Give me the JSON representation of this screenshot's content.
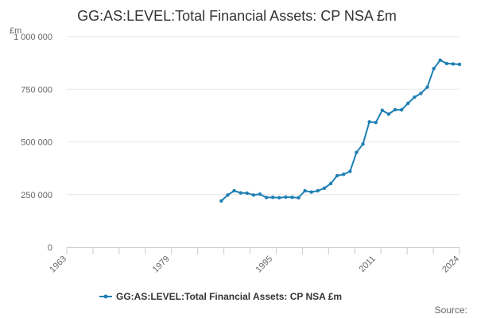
{
  "chart_data": {
    "type": "line",
    "title": "GG:AS:LEVEL:Total Financial Assets: CP NSA £m",
    "unit_label": "£m",
    "source_label": "Source:",
    "x_ticks": [
      "1963",
      "1979",
      "1995",
      "2011",
      "2024"
    ],
    "y_ticks": [
      "0",
      "250 000",
      "500 000",
      "750 000",
      "1 000 000"
    ],
    "xlim": [
      1963,
      2024
    ],
    "ylim": [
      0,
      1000000
    ],
    "grid": "horizontal",
    "legend_position": "bottom",
    "series": [
      {
        "name": "GG:AS:LEVEL:Total Financial Assets: CP NSA £m",
        "color": "#1f7fb4",
        "x": [
          1987,
          1988,
          1989,
          1990,
          1991,
          1992,
          1993,
          1994,
          1995,
          1996,
          1997,
          1998,
          1999,
          2000,
          2001,
          2002,
          2003,
          2004,
          2005,
          2006,
          2007,
          2008,
          2009,
          2010,
          2011,
          2012,
          2013,
          2014,
          2015,
          2016,
          2017,
          2018,
          2019,
          2020,
          2021,
          2022,
          2023,
          2024
        ],
        "y": [
          220000,
          248000,
          268000,
          258000,
          257000,
          248000,
          252000,
          236000,
          237000,
          235000,
          238000,
          237000,
          235000,
          268000,
          262000,
          268000,
          280000,
          302000,
          340000,
          346000,
          360000,
          450000,
          490000,
          595000,
          592000,
          650000,
          632000,
          653000,
          652000,
          683000,
          712000,
          730000,
          760000,
          848000,
          888000,
          872000,
          870000,
          868000
        ]
      }
    ]
  }
}
